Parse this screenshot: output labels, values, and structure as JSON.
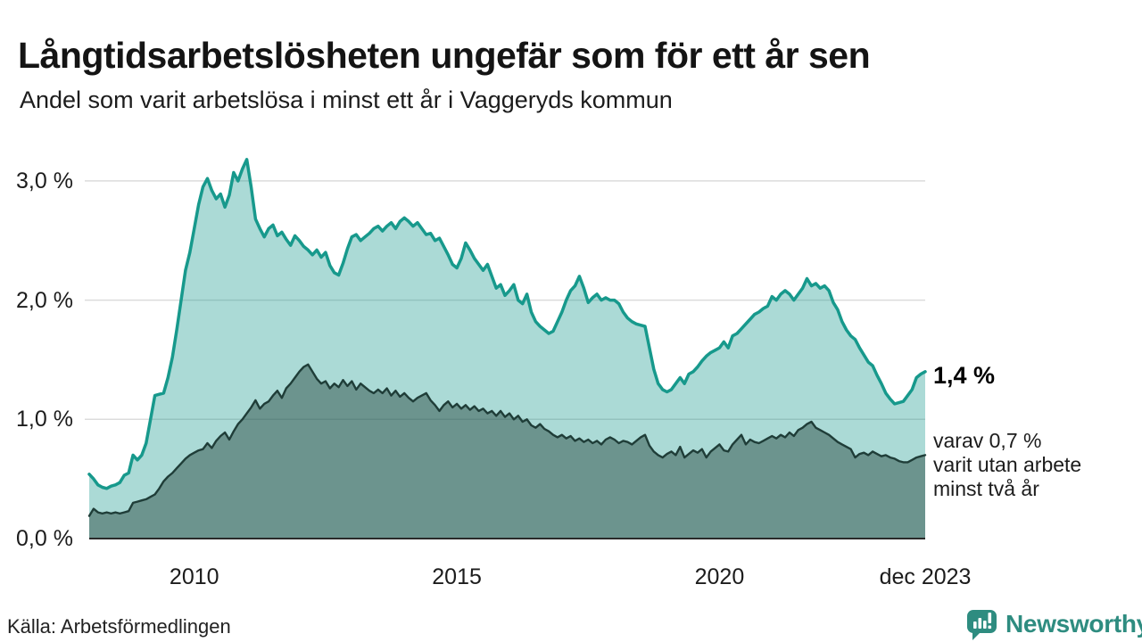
{
  "header": {
    "title": "Långtidsarbetslösheten ungefär som för ett år sen",
    "subtitle": "Andel som varit arbetslösa i minst ett år i Vaggeryds kommun"
  },
  "chart_data": {
    "type": "area",
    "title": "Långtidsarbetslösheten ungefär som för ett år sen",
    "subtitle": "Andel som varit arbetslösa i minst ett år i Vaggeryds kommun",
    "unit": "%",
    "frequency": "monthly",
    "x_start": "2008-01",
    "x_end": "2023-12",
    "ylim": [
      0,
      3.3
    ],
    "grid": true,
    "legend": "none",
    "yticks": [
      {
        "value": 3,
        "label": "3,0 %"
      },
      {
        "value": 2,
        "label": "2,0 %"
      },
      {
        "value": 1,
        "label": "1,0 %"
      },
      {
        "value": 0,
        "label": "0,0 %"
      }
    ],
    "xticks": [
      {
        "month_index": 24,
        "label": "2010"
      },
      {
        "month_index": 84,
        "label": "2015"
      },
      {
        "month_index": 144,
        "label": "2020"
      },
      {
        "month_index": 191,
        "label": "dec 2023"
      }
    ],
    "series": [
      {
        "name": "Andel arbetslösa minst ett år",
        "color": "#17998c",
        "fill": "rgba(23,153,140,0.36)",
        "last_value": 1.4,
        "values": [
          0.54,
          0.5,
          0.45,
          0.43,
          0.42,
          0.44,
          0.45,
          0.47,
          0.53,
          0.55,
          0.7,
          0.66,
          0.7,
          0.8,
          1.0,
          1.2,
          1.21,
          1.22,
          1.35,
          1.52,
          1.75,
          2.0,
          2.25,
          2.4,
          2.6,
          2.8,
          2.95,
          3.02,
          2.92,
          2.85,
          2.89,
          2.78,
          2.88,
          3.07,
          3.0,
          3.1,
          3.18,
          2.95,
          2.68,
          2.6,
          2.53,
          2.6,
          2.63,
          2.54,
          2.57,
          2.51,
          2.46,
          2.54,
          2.5,
          2.45,
          2.42,
          2.38,
          2.42,
          2.36,
          2.4,
          2.29,
          2.23,
          2.21,
          2.31,
          2.43,
          2.53,
          2.55,
          2.5,
          2.53,
          2.56,
          2.6,
          2.62,
          2.58,
          2.62,
          2.65,
          2.6,
          2.66,
          2.69,
          2.66,
          2.62,
          2.65,
          2.6,
          2.55,
          2.56,
          2.5,
          2.52,
          2.45,
          2.38,
          2.3,
          2.27,
          2.35,
          2.48,
          2.42,
          2.35,
          2.3,
          2.25,
          2.3,
          2.2,
          2.1,
          2.13,
          2.04,
          2.08,
          2.13,
          2.0,
          1.97,
          2.05,
          1.9,
          1.82,
          1.78,
          1.75,
          1.72,
          1.74,
          1.82,
          1.9,
          2.0,
          2.08,
          2.12,
          2.2,
          2.1,
          1.98,
          2.02,
          2.05,
          2.0,
          2.02,
          2.0,
          2.0,
          1.97,
          1.9,
          1.85,
          1.82,
          1.8,
          1.79,
          1.78,
          1.6,
          1.42,
          1.3,
          1.25,
          1.23,
          1.25,
          1.3,
          1.35,
          1.3,
          1.38,
          1.4,
          1.44,
          1.49,
          1.53,
          1.56,
          1.58,
          1.6,
          1.65,
          1.6,
          1.7,
          1.72,
          1.76,
          1.8,
          1.84,
          1.88,
          1.9,
          1.93,
          1.95,
          2.03,
          2.0,
          2.05,
          2.08,
          2.05,
          2.0,
          2.05,
          2.1,
          2.18,
          2.12,
          2.14,
          2.1,
          2.12,
          2.08,
          1.98,
          1.92,
          1.82,
          1.75,
          1.7,
          1.67,
          1.6,
          1.54,
          1.48,
          1.45,
          1.37,
          1.3,
          1.22,
          1.17,
          1.13,
          1.14,
          1.15,
          1.2,
          1.25,
          1.35,
          1.38,
          1.4
        ]
      },
      {
        "name": "varav arbetslösa minst två år",
        "color": "#1f3d38",
        "fill": "rgba(31,61,56,0.45)",
        "last_value": 0.7,
        "values": [
          0.19,
          0.25,
          0.22,
          0.21,
          0.22,
          0.21,
          0.22,
          0.21,
          0.22,
          0.23,
          0.3,
          0.31,
          0.32,
          0.33,
          0.35,
          0.37,
          0.42,
          0.48,
          0.52,
          0.55,
          0.59,
          0.63,
          0.67,
          0.7,
          0.72,
          0.74,
          0.75,
          0.8,
          0.76,
          0.82,
          0.86,
          0.89,
          0.83,
          0.9,
          0.96,
          1.0,
          1.05,
          1.1,
          1.16,
          1.09,
          1.13,
          1.15,
          1.2,
          1.24,
          1.18,
          1.26,
          1.3,
          1.35,
          1.4,
          1.44,
          1.46,
          1.4,
          1.34,
          1.3,
          1.32,
          1.26,
          1.3,
          1.27,
          1.33,
          1.28,
          1.32,
          1.25,
          1.3,
          1.27,
          1.24,
          1.22,
          1.25,
          1.22,
          1.26,
          1.2,
          1.24,
          1.19,
          1.22,
          1.18,
          1.15,
          1.18,
          1.2,
          1.22,
          1.16,
          1.12,
          1.07,
          1.12,
          1.15,
          1.1,
          1.13,
          1.09,
          1.12,
          1.08,
          1.11,
          1.07,
          1.09,
          1.05,
          1.07,
          1.03,
          1.07,
          1.02,
          1.05,
          1.0,
          1.03,
          0.98,
          1.0,
          0.95,
          0.93,
          0.96,
          0.92,
          0.9,
          0.87,
          0.85,
          0.87,
          0.84,
          0.86,
          0.82,
          0.84,
          0.81,
          0.83,
          0.8,
          0.82,
          0.79,
          0.83,
          0.85,
          0.83,
          0.8,
          0.82,
          0.81,
          0.79,
          0.82,
          0.85,
          0.87,
          0.78,
          0.73,
          0.7,
          0.68,
          0.71,
          0.73,
          0.7,
          0.77,
          0.68,
          0.71,
          0.74,
          0.72,
          0.75,
          0.68,
          0.73,
          0.76,
          0.79,
          0.74,
          0.73,
          0.79,
          0.83,
          0.87,
          0.79,
          0.83,
          0.81,
          0.8,
          0.82,
          0.84,
          0.86,
          0.84,
          0.87,
          0.85,
          0.89,
          0.86,
          0.91,
          0.93,
          0.96,
          0.98,
          0.93,
          0.91,
          0.89,
          0.87,
          0.84,
          0.81,
          0.79,
          0.77,
          0.75,
          0.68,
          0.71,
          0.72,
          0.7,
          0.73,
          0.71,
          0.69,
          0.7,
          0.68,
          0.67,
          0.65,
          0.64,
          0.64,
          0.66,
          0.68,
          0.69,
          0.7
        ]
      }
    ],
    "colors": {
      "grid": "#dcdcdc",
      "axis": "#2a2a2a"
    },
    "annotations": {
      "value_label": "1,4 %",
      "note": "varav 0,7 %\nvarit utan arbete\nminst två år"
    }
  },
  "footer": {
    "source": "Källa: Arbetsförmedlingen",
    "brand_name": "Newsworthy",
    "brand_color": "#2e8c80"
  }
}
